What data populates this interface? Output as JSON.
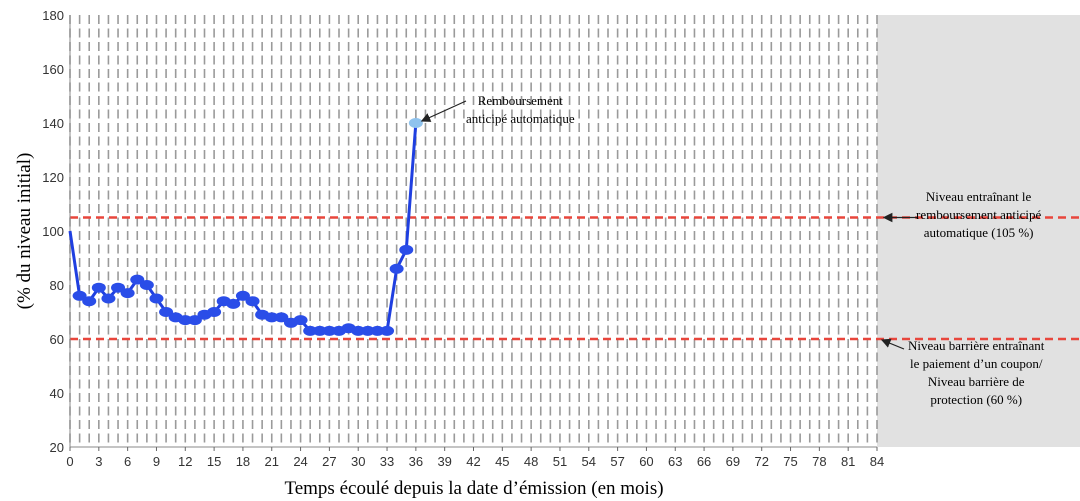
{
  "chart_data": {
    "type": "line",
    "xlabel": "Temps écoulé depuis la date d’émission (en mois)",
    "ylabel": "(% du niveau initial)",
    "xlim": [
      0,
      84
    ],
    "ylim": [
      20,
      180
    ],
    "x_ticks": [
      0,
      3,
      6,
      9,
      12,
      15,
      18,
      21,
      24,
      27,
      30,
      33,
      36,
      39,
      42,
      45,
      48,
      51,
      54,
      57,
      60,
      63,
      66,
      69,
      72,
      75,
      78,
      81,
      84
    ],
    "y_ticks": [
      20,
      40,
      60,
      80,
      100,
      120,
      140,
      160,
      180
    ],
    "series": [
      {
        "x": [
          0,
          1,
          2,
          3,
          4,
          5,
          6,
          7,
          8,
          9,
          10,
          11,
          12,
          13,
          14,
          15,
          16,
          17,
          18,
          19,
          20,
          21,
          22,
          23,
          24,
          25,
          26,
          27,
          28,
          29,
          30,
          31,
          32,
          33,
          34,
          35,
          36
        ],
        "y": [
          100,
          76,
          74,
          79,
          75,
          79,
          77,
          82,
          80,
          75,
          70,
          68,
          67,
          67,
          69,
          70,
          74,
          73,
          76,
          74,
          69,
          68,
          68,
          66,
          67,
          63,
          63,
          63,
          63,
          64,
          63,
          63,
          63,
          63,
          86,
          93,
          140
        ]
      }
    ],
    "reference_lines": [
      {
        "y": 105,
        "label": "Niveau entraînant  le remboursement anticipé automatique (105 %)",
        "color": "#e8463c"
      },
      {
        "y": 60,
        "label": "Niveau barrière entraînant le paiement d’un coupon/ Niveau barrière de protection (60 %)",
        "color": "#e8463c"
      }
    ],
    "annotations": [
      {
        "x": 36,
        "y": 140,
        "text": "Remboursement anticipé automatique"
      }
    ],
    "shaded_region_after_x": 84,
    "grid": true,
    "colors": {
      "line": "#1f3fe0",
      "marker": "#2a4de8",
      "final_marker": "#8fc3ee",
      "shade": "#e1e1e1",
      "grid": "#9a9a9a"
    }
  },
  "notes": {
    "autocall_annotation": [
      "Remboursement",
      "anticipé automatique"
    ],
    "upper_line_note": [
      "Niveau entraînant  le",
      "remboursement anticipé",
      "automatique (105 %)"
    ],
    "lower_line_note": [
      "Niveau barrière entraînant",
      "le paiement d’un coupon/",
      "Niveau barrière de",
      "protection (60 %)"
    ]
  }
}
